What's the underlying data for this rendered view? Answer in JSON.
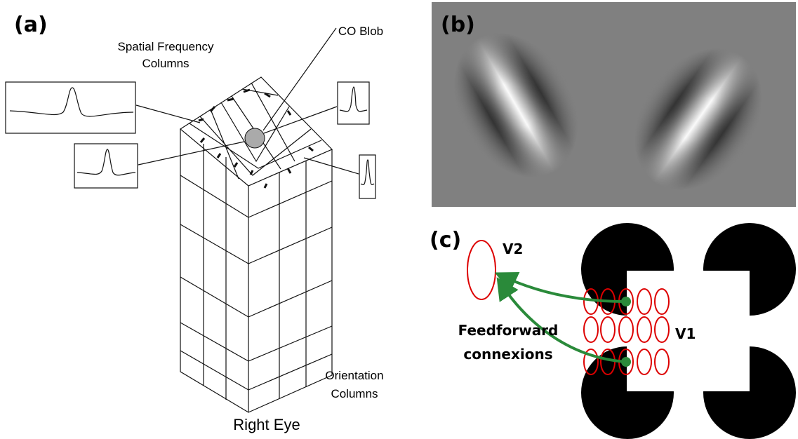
{
  "panels": [
    {
      "label": "(a)",
      "texts": {
        "spatial_frequency": [
          "Spatial Frequency",
          "Columns"
        ],
        "co_blob": "CO Blob",
        "orientation": [
          "Orientation",
          "Columns"
        ],
        "caption": "Right Eye"
      }
    },
    {
      "label": "(b)"
    },
    {
      "label": "(c)",
      "texts": {
        "v2": "V2",
        "v1": "V1",
        "feedforward": [
          "Feedforward",
          "connexions"
        ]
      }
    }
  ]
}
